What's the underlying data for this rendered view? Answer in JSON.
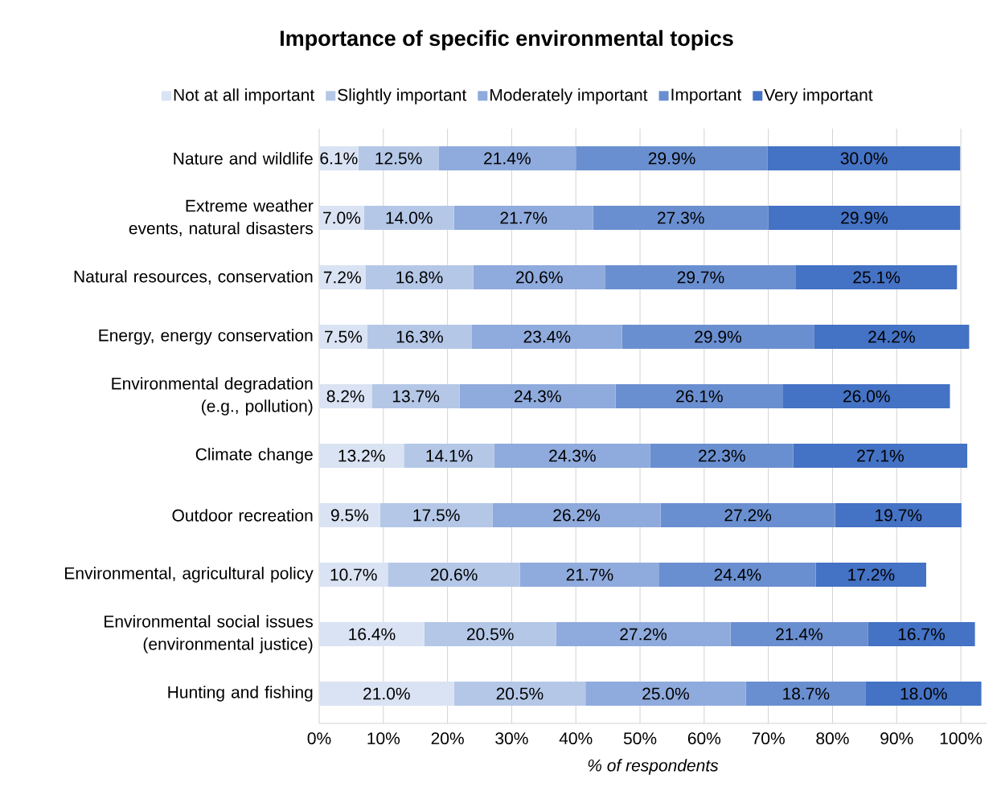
{
  "chart_data": {
    "type": "bar",
    "orientation": "horizontal",
    "stacked": true,
    "title": "Importance of specific environmental topics",
    "xlabel": "*% of respondents*",
    "legend": "top",
    "grid": "x",
    "categories": [
      "Nature and wildlife",
      "Extreme weather events, natural disasters",
      "Natural resources, conservation",
      "Energy, energy conservation",
      "Environmental degradation (e.g., pollution)",
      "Climate change",
      "Outdoor recreation",
      "Environmental, agricultural policy",
      "Environmental social issues (environmental justice)",
      "Hunting and fishing"
    ],
    "xlim": [
      0,
      104
    ],
    "xticks": [
      {
        "value": 0,
        "label": "0%"
      },
      {
        "value": 10,
        "label": "10%"
      },
      {
        "value": 20,
        "label": "20%"
      },
      {
        "value": 30,
        "label": "30%"
      },
      {
        "value": 40,
        "label": "40%"
      },
      {
        "value": 50,
        "label": "50%"
      },
      {
        "value": 60,
        "label": "60%"
      },
      {
        "value": 70,
        "label": "70%"
      },
      {
        "value": 80,
        "label": "80%"
      },
      {
        "value": 90,
        "label": "90%"
      },
      {
        "value": 100,
        "label": "100%"
      }
    ],
    "series": [
      {
        "name": "Not at all important",
        "color": "#dae3f3",
        "values": [
          6.1,
          7.0,
          7.2,
          7.5,
          8.2,
          13.2,
          9.5,
          10.7,
          16.4,
          21.0
        ],
        "value_labels": [
          "6.1%",
          "7.0%",
          "7.2%",
          "7.5%",
          "8.2%",
          "13.2%",
          "9.5%",
          "10.7%",
          "16.4%",
          "21.0%"
        ]
      },
      {
        "name": "Slightly important",
        "color": "#b4c7e7",
        "values": [
          12.5,
          14.0,
          16.8,
          16.3,
          13.7,
          14.1,
          17.5,
          20.6,
          20.5,
          20.5
        ],
        "value_labels": [
          "12.5%",
          "14.0%",
          "16.8%",
          "16.3%",
          "13.7%",
          "14.1%",
          "17.5%",
          "20.6%",
          "20.5%",
          "20.5%"
        ]
      },
      {
        "name": "Moderately important",
        "color": "#8faadc",
        "values": [
          21.4,
          21.7,
          20.6,
          23.4,
          24.3,
          24.3,
          26.2,
          21.7,
          27.2,
          25.0
        ],
        "value_labels": [
          "21.4%",
          "21.7%",
          "20.6%",
          "23.4%",
          "24.3%",
          "24.3%",
          "26.2%",
          "21.7%",
          "27.2%",
          "25.0%"
        ]
      },
      {
        "name": "Important",
        "color": "#6a8fd0",
        "values": [
          29.9,
          27.3,
          29.7,
          29.9,
          26.1,
          22.3,
          27.2,
          24.4,
          21.4,
          18.7
        ],
        "value_labels": [
          "29.9%",
          "27.3%",
          "29.7%",
          "29.9%",
          "26.1%",
          "22.3%",
          "27.2%",
          "24.4%",
          "21.4%",
          "18.7%"
        ]
      },
      {
        "name": "Very important",
        "color": "#4472c4",
        "values": [
          30.0,
          29.9,
          25.1,
          24.2,
          26.0,
          27.1,
          19.7,
          17.2,
          16.7,
          18.0
        ],
        "value_labels": [
          "30.0%",
          "29.9%",
          "25.1%",
          "24.2%",
          "26.0%",
          "27.1%",
          "19.7%",
          "17.2%",
          "16.7%",
          "18.0%"
        ]
      }
    ]
  }
}
